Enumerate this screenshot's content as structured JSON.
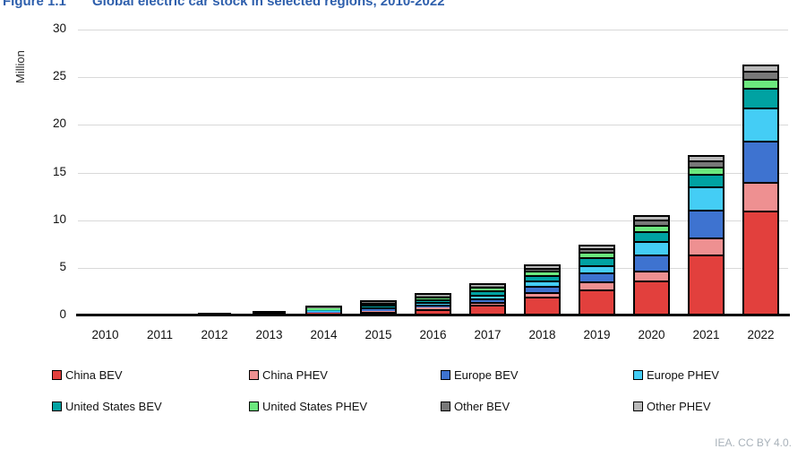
{
  "figure": {
    "label": "Figure 1.1",
    "title": "Global electric car stock in selected regions, 2010-2022"
  },
  "source_note": "IEA. CC BY 4.0.",
  "palette": {
    "title_blue": "#2e5fac",
    "gridline": "#d9d9d9",
    "axis": "#000000",
    "segment_border": "#000000"
  },
  "chart_data": {
    "type": "bar",
    "stacked": true,
    "title": "Global electric car stock in selected regions, 2010-2022",
    "xlabel": "",
    "ylabel": "Million",
    "ylim": [
      0,
      30
    ],
    "yticks": [
      0,
      5,
      10,
      15,
      20,
      25,
      30
    ],
    "grid": "horizontal",
    "legend_position": "bottom",
    "categories": [
      "2010",
      "2011",
      "2012",
      "2013",
      "2014",
      "2015",
      "2016",
      "2017",
      "2018",
      "2019",
      "2020",
      "2021",
      "2022"
    ],
    "series": [
      {
        "name": "China BEV",
        "color": "#e2403d",
        "values": [
          0.0,
          0.01,
          0.02,
          0.03,
          0.08,
          0.23,
          0.49,
          0.95,
          1.75,
          2.58,
          3.5,
          6.2,
          10.8
        ]
      },
      {
        "name": "China PHEV",
        "color": "#ee9091",
        "values": [
          0.0,
          0.0,
          0.0,
          0.0,
          0.02,
          0.09,
          0.17,
          0.28,
          0.51,
          0.77,
          1.05,
          1.8,
          3.0
        ]
      },
      {
        "name": "Europe BEV",
        "color": "#3e73d0",
        "values": [
          0.0,
          0.01,
          0.03,
          0.06,
          0.11,
          0.18,
          0.26,
          0.38,
          0.62,
          0.97,
          1.65,
          2.9,
          4.4
        ]
      },
      {
        "name": "Europe PHEV",
        "color": "#44cdf5",
        "values": [
          0.0,
          0.0,
          0.01,
          0.03,
          0.06,
          0.19,
          0.3,
          0.41,
          0.58,
          0.77,
          1.4,
          2.5,
          3.4
        ]
      },
      {
        "name": "United States BEV",
        "color": "#00a2a2",
        "values": [
          0.0,
          0.01,
          0.03,
          0.08,
          0.14,
          0.21,
          0.3,
          0.4,
          0.63,
          0.88,
          1.1,
          1.3,
          2.1
        ]
      },
      {
        "name": "United States PHEV",
        "color": "#6ce87e",
        "values": [
          0.0,
          0.01,
          0.04,
          0.1,
          0.18,
          0.19,
          0.27,
          0.36,
          0.47,
          0.57,
          0.65,
          0.7,
          0.9
        ]
      },
      {
        "name": "Other BEV",
        "color": "#787878",
        "values": [
          0.01,
          0.02,
          0.04,
          0.06,
          0.09,
          0.12,
          0.1,
          0.15,
          0.25,
          0.35,
          0.5,
          0.65,
          0.9
        ]
      },
      {
        "name": "Other PHEV",
        "color": "#b9b9b9",
        "values": [
          0.0,
          0.0,
          0.0,
          0.01,
          0.02,
          0.04,
          0.05,
          0.12,
          0.15,
          0.18,
          0.3,
          0.4,
          0.5
        ]
      }
    ]
  }
}
